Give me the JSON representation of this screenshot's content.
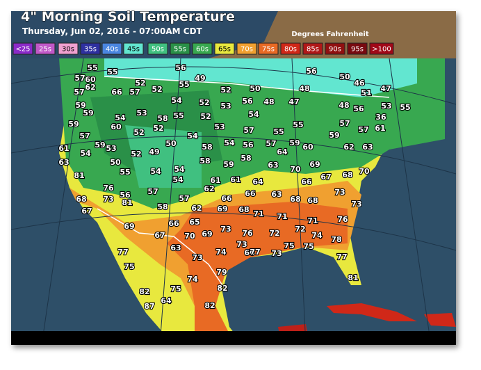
{
  "header": {
    "title": "4\" Morning Soil Temperature",
    "subtitle": "Thursday, Jun 02, 2016 - 07:00AM CDT",
    "units": "Degrees Fahrenheit"
  },
  "legend": [
    {
      "label": "<25",
      "color": "#8a2ac8"
    },
    {
      "label": "25s",
      "color": "#c058c8"
    },
    {
      "label": "30s",
      "color": "#f0a0d0"
    },
    {
      "label": "35s",
      "color": "#2e30a0"
    },
    {
      "label": "40s",
      "color": "#4a86e0"
    },
    {
      "label": "45s",
      "color": "#62e6d0"
    },
    {
      "label": "50s",
      "color": "#40c080"
    },
    {
      "label": "55s",
      "color": "#2a9048"
    },
    {
      "label": "60s",
      "color": "#38a850"
    },
    {
      "label": "65s",
      "color": "#e8e83e"
    },
    {
      "label": "70s",
      "color": "#f0a030"
    },
    {
      "label": "75s",
      "color": "#e86a24"
    },
    {
      "label": "80s",
      "color": "#d02818"
    },
    {
      "label": "85s",
      "color": "#b01818"
    },
    {
      "label": "90s",
      "color": "#901010"
    },
    {
      "label": "95s",
      "color": "#780a10"
    },
    {
      "label": ">100",
      "color": "#a00818"
    }
  ],
  "stations": [
    55,
    55,
    56,
    56,
    50,
    46,
    57,
    60,
    49,
    62,
    52,
    55,
    47,
    51,
    57,
    66,
    57,
    52,
    52,
    50,
    48,
    59,
    54,
    52,
    53,
    56,
    48,
    47,
    48,
    53,
    55,
    56,
    59,
    54,
    53,
    58,
    55,
    52,
    54,
    36,
    59,
    60,
    52,
    53,
    57,
    55,
    55,
    57,
    57,
    61,
    57,
    52,
    54,
    50,
    58,
    54,
    56,
    57,
    59,
    60,
    59,
    62,
    63,
    61,
    54,
    59,
    53,
    52,
    49,
    63,
    50,
    55,
    58,
    59,
    58,
    63,
    64,
    70,
    69,
    67,
    70,
    81,
    54,
    54,
    54,
    61,
    61,
    64,
    66,
    68,
    76,
    57,
    62,
    63,
    73,
    68,
    73,
    56,
    81,
    57,
    66,
    66,
    68,
    68,
    73,
    67,
    58,
    62,
    69,
    68,
    71,
    71,
    71,
    76,
    69,
    66,
    65,
    73,
    76,
    72,
    72,
    74,
    67,
    70,
    69,
    73,
    75,
    75,
    78,
    77,
    63,
    74,
    66,
    77,
    73,
    77,
    73,
    75,
    79,
    81,
    74,
    82,
    75,
    82,
    87,
    64,
    82
  ]
}
